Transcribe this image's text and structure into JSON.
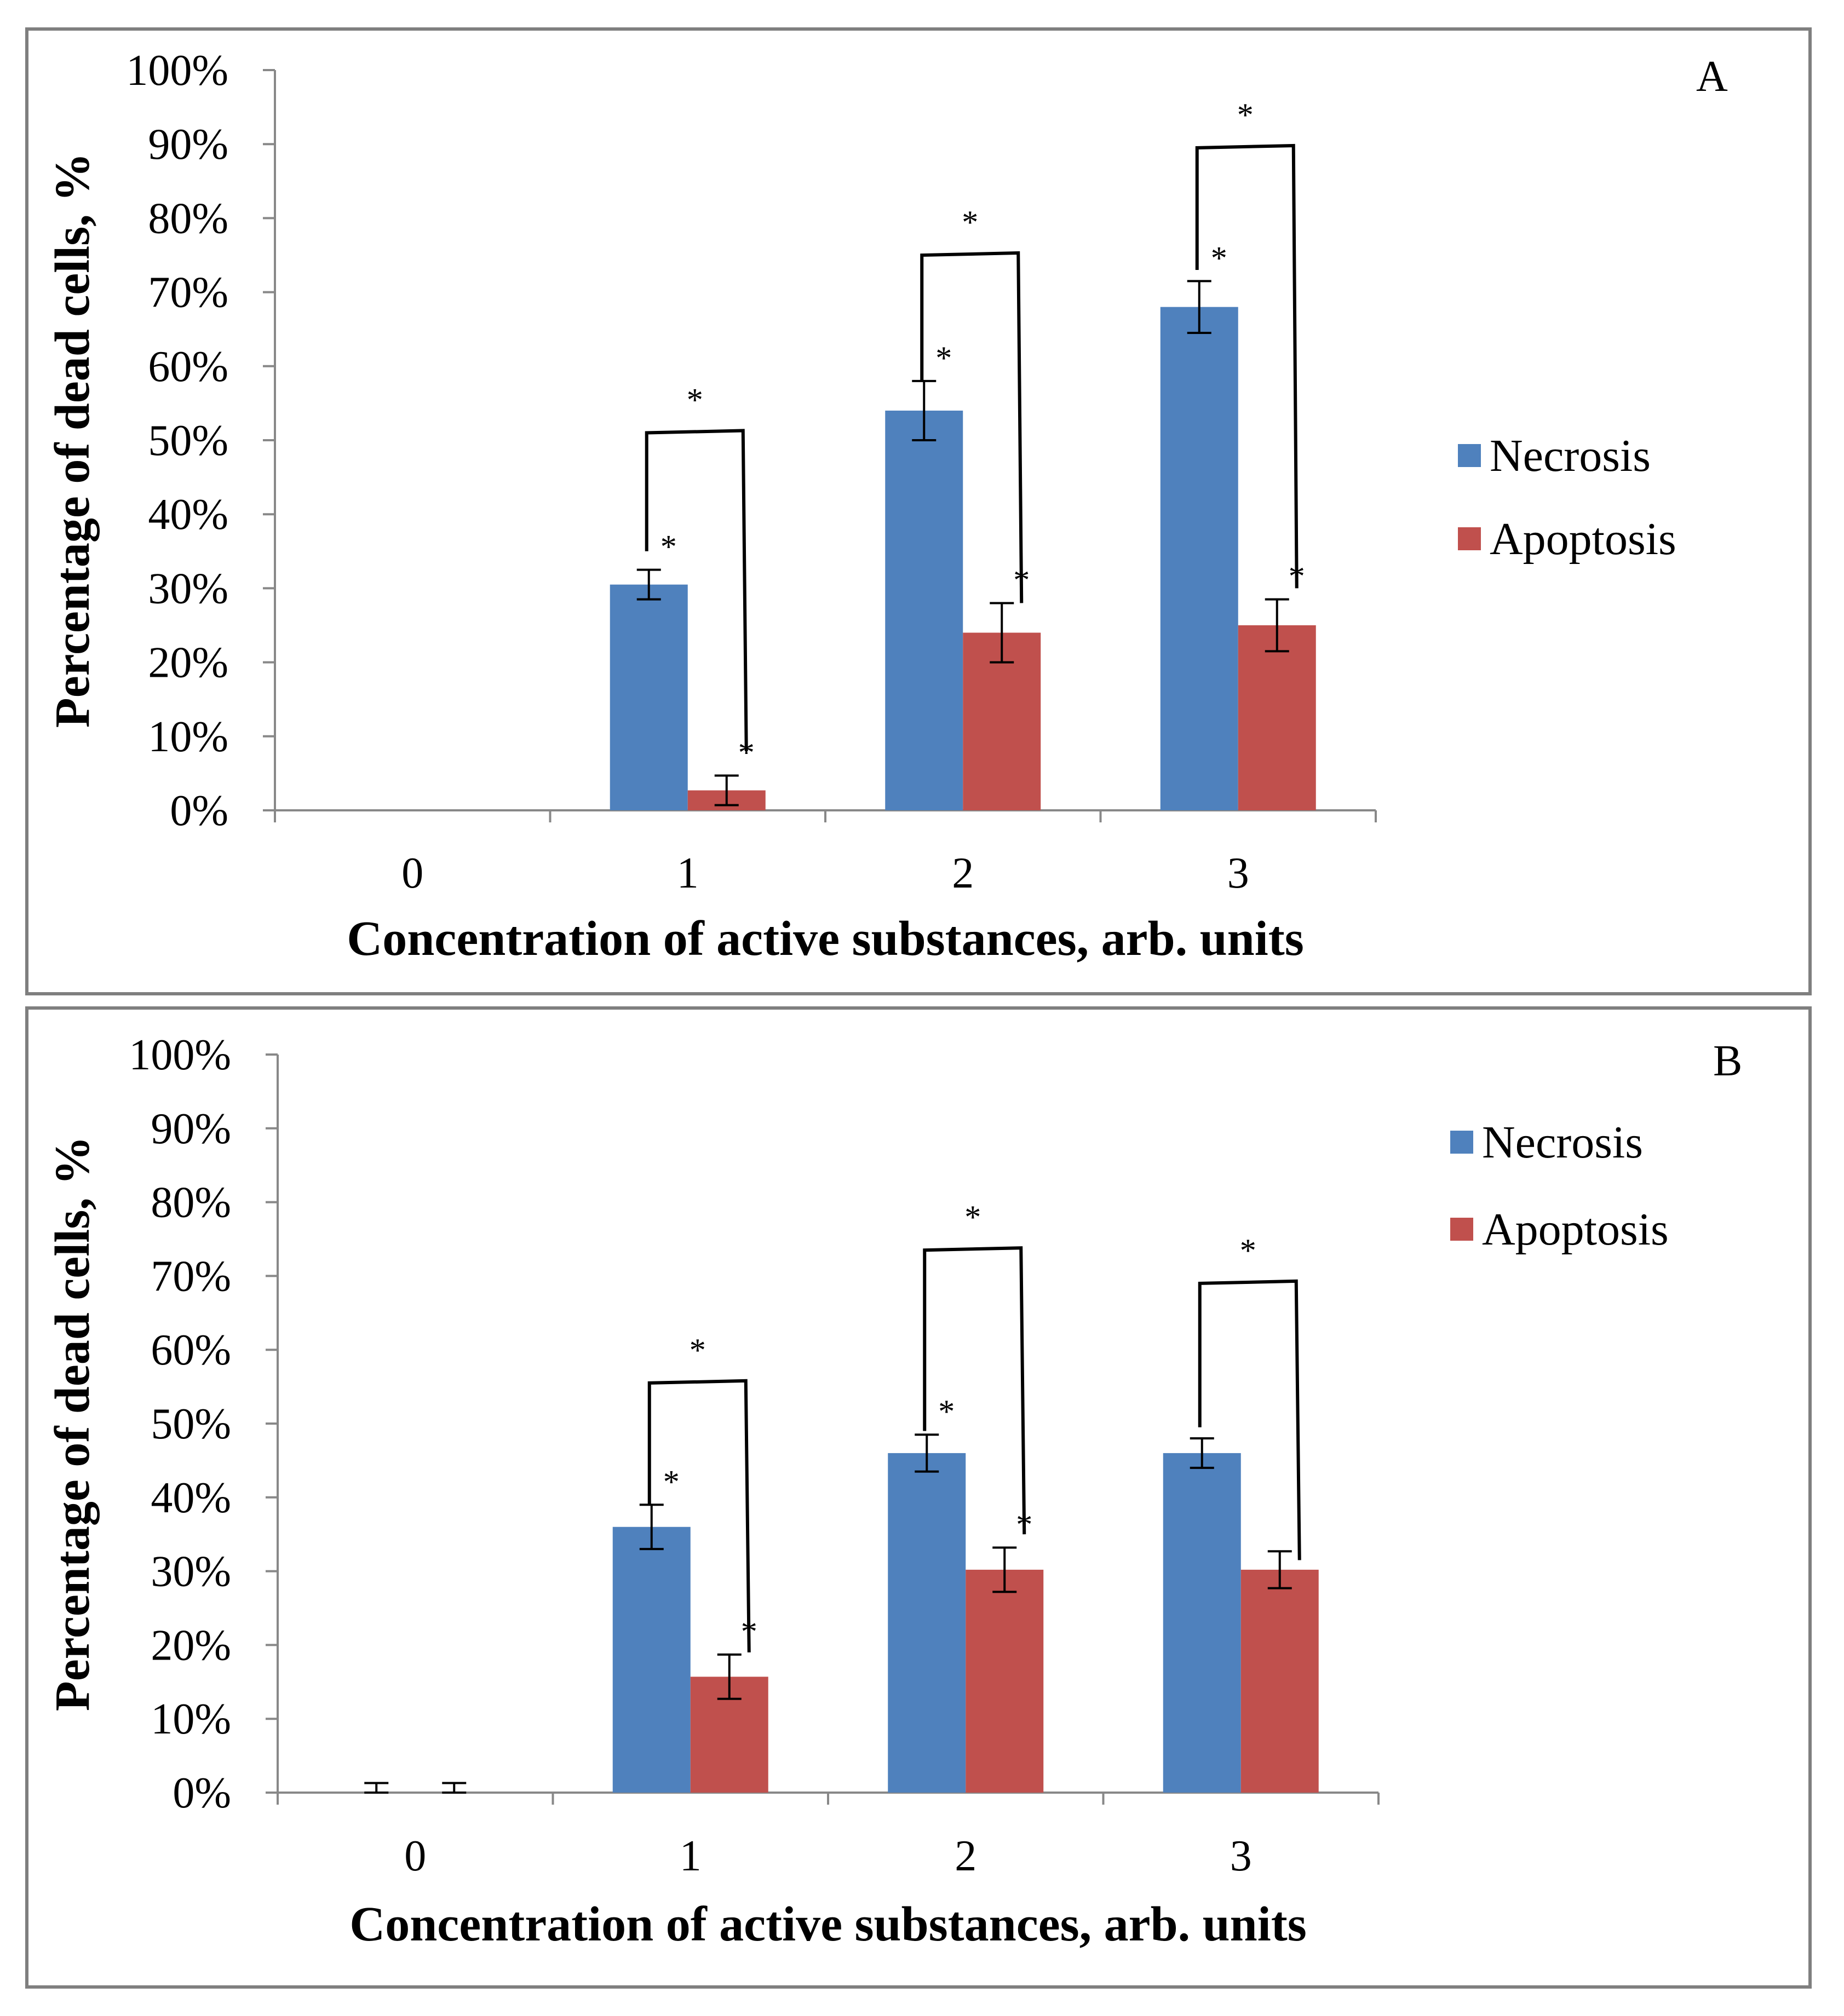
{
  "chart_data": [
    {
      "type": "bar",
      "panel_label": "A",
      "categories": [
        "0",
        "1",
        "2",
        "3"
      ],
      "series": [
        {
          "name": "Necrosis",
          "values": [
            0,
            30.5,
            54,
            68
          ],
          "errors": [
            0,
            2,
            4,
            3.5
          ],
          "color": "#4f81bd"
        },
        {
          "name": "Apoptosis",
          "values": [
            0,
            2.7,
            24,
            25
          ],
          "errors": [
            0,
            2,
            4,
            3.5
          ],
          "color": "#c0504d"
        }
      ],
      "series_markers": [
        {
          "series": 0,
          "category": 1,
          "text": "*"
        },
        {
          "series": 0,
          "category": 2,
          "text": "*"
        },
        {
          "series": 0,
          "category": 3,
          "text": "*"
        },
        {
          "series": 1,
          "category": 1,
          "text": "*"
        },
        {
          "series": 1,
          "category": 2,
          "text": "*"
        },
        {
          "series": 1,
          "category": 3,
          "text": "*"
        }
      ],
      "brackets": [
        {
          "category": 1,
          "top_value": 51,
          "left_start": 35,
          "right_start": 8,
          "text": "*"
        },
        {
          "category": 2,
          "top_value": 75,
          "left_start": 58,
          "right_start": 28,
          "text": "*"
        },
        {
          "category": 3,
          "top_value": 89.5,
          "left_start": 73,
          "right_start": 30,
          "text": "*"
        }
      ],
      "ytick_labels": [
        "0%",
        "10%",
        "20%",
        "30%",
        "40%",
        "50%",
        "60%",
        "70%",
        "80%",
        "90%",
        "100%"
      ],
      "ylim": [
        0,
        100
      ],
      "ylabel": "Percentage of dead cells, %",
      "xlabel": "Concentration of active substances, arb. units",
      "legend": {
        "position": "right",
        "items": [
          "Necrosis",
          "Apoptosis"
        ]
      }
    },
    {
      "type": "bar",
      "panel_label": "B",
      "categories": [
        "0",
        "1",
        "2",
        "3"
      ],
      "series": [
        {
          "name": "Necrosis",
          "values": [
            0,
            36,
            46,
            46
          ],
          "errors": [
            1.3,
            3,
            2.5,
            2
          ],
          "color": "#4f81bd"
        },
        {
          "name": "Apoptosis",
          "values": [
            0,
            15.7,
            30.2,
            30.2
          ],
          "errors": [
            1.3,
            3,
            3,
            2.5
          ],
          "color": "#c0504d"
        }
      ],
      "series_markers": [
        {
          "series": 0,
          "category": 1,
          "text": "*"
        },
        {
          "series": 0,
          "category": 2,
          "text": "*"
        },
        {
          "series": 1,
          "category": 1,
          "text": "*"
        },
        {
          "series": 1,
          "category": 2,
          "text": "*"
        }
      ],
      "brackets": [
        {
          "category": 1,
          "top_value": 55.5,
          "left_start": 39,
          "right_start": 19,
          "text": "*"
        },
        {
          "category": 2,
          "top_value": 73.5,
          "left_start": 49,
          "right_start": 35,
          "text": "*"
        },
        {
          "category": 3,
          "top_value": 69,
          "left_start": 49.5,
          "right_start": 31.5,
          "text": "*"
        }
      ],
      "ytick_labels": [
        "0%",
        "10%",
        "20%",
        "30%",
        "40%",
        "50%",
        "60%",
        "70%",
        "80%",
        "90%",
        "100%"
      ],
      "ylim": [
        0,
        100
      ],
      "ylabel": "Percentage of dead cells, %",
      "xlabel": "Concentration of active substances, arb. units",
      "legend": {
        "position": "right",
        "items": [
          "Necrosis",
          "Apoptosis"
        ]
      }
    }
  ]
}
